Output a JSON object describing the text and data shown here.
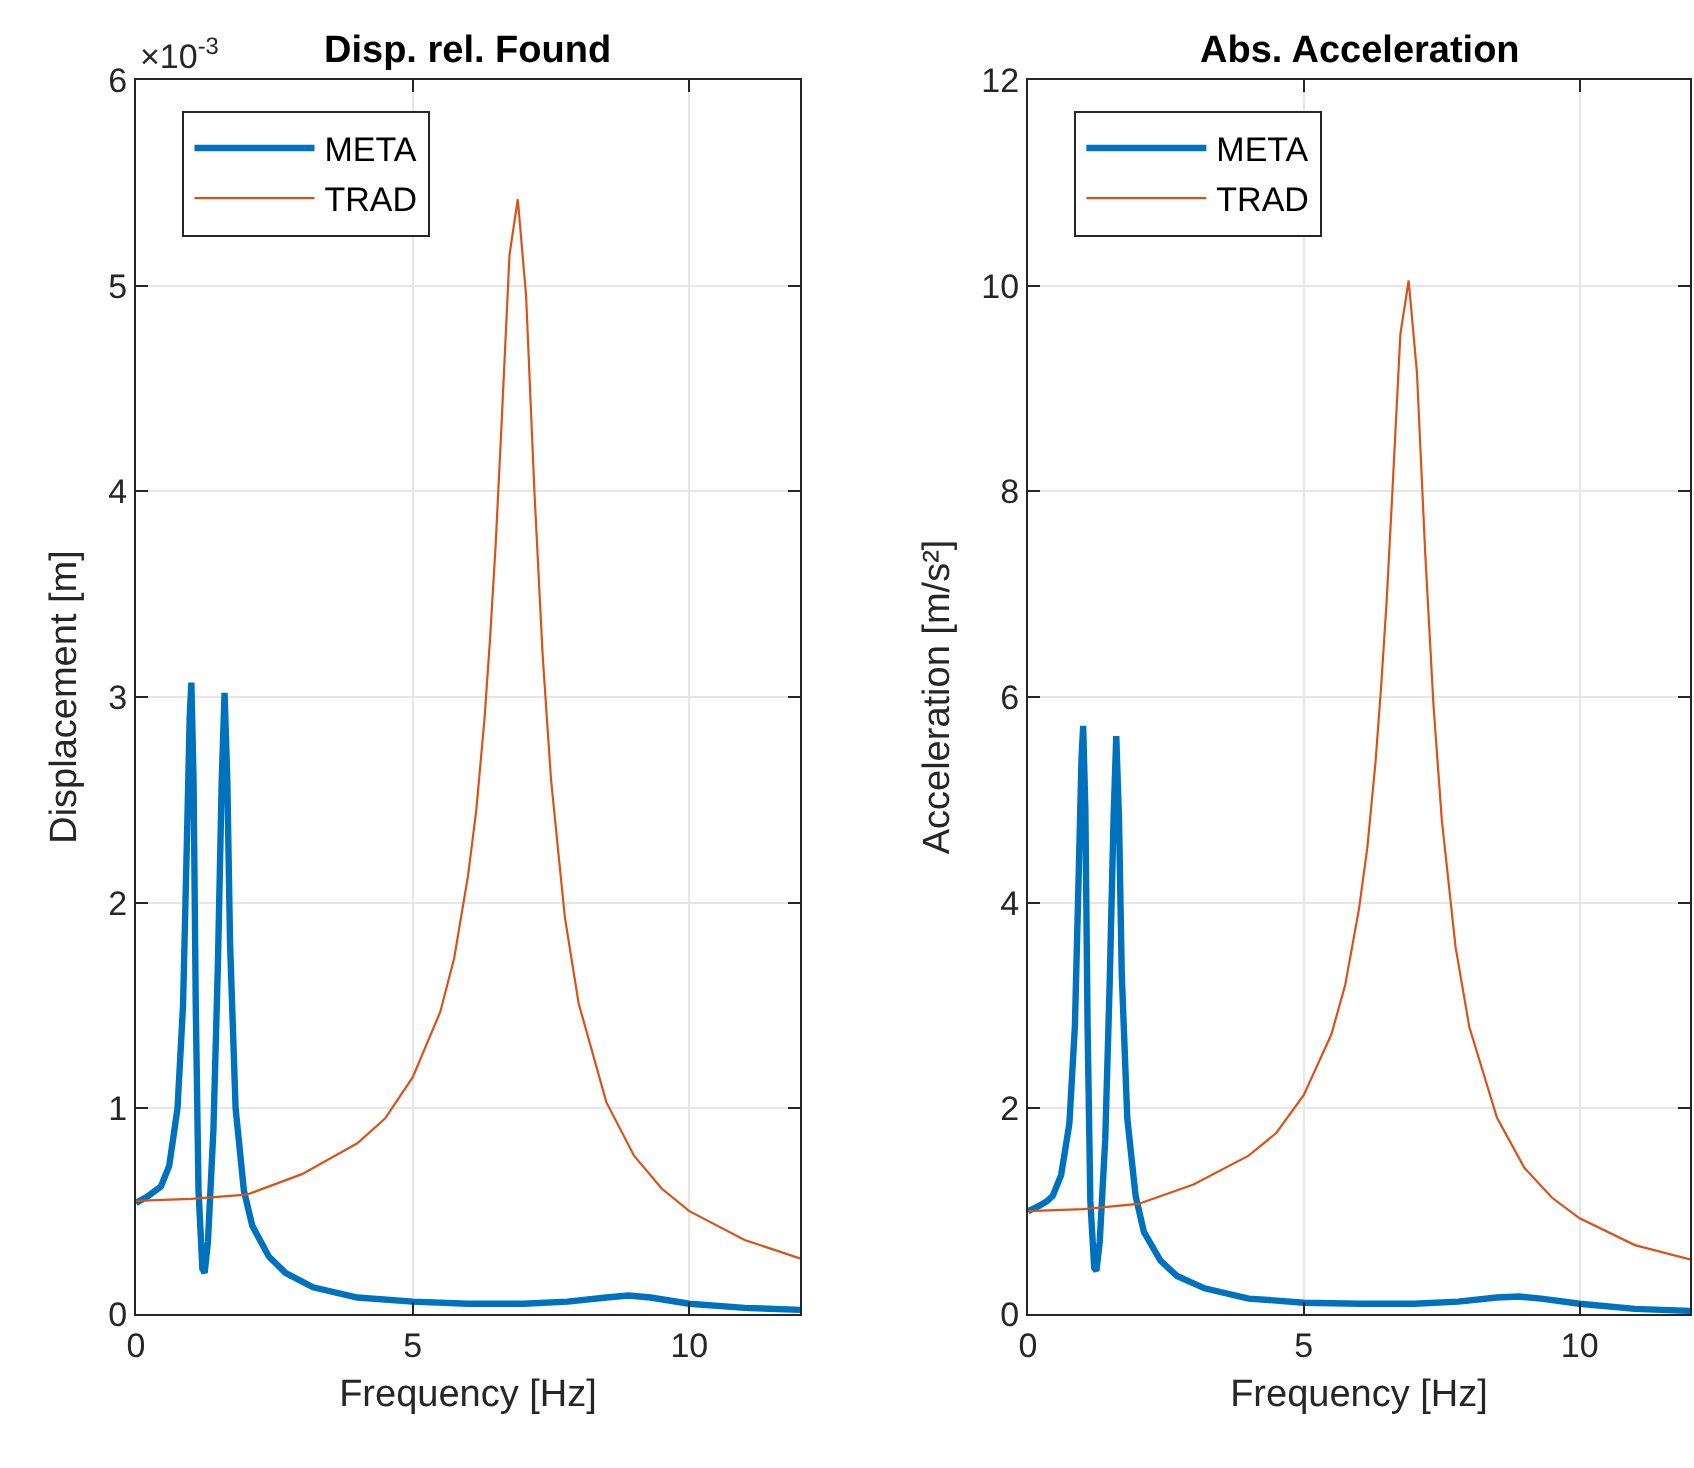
{
  "chart_data": [
    {
      "type": "line",
      "title": "Disp. rel. Found",
      "xlabel": "Frequency [Hz]",
      "ylabel": "Displacement [m]",
      "annotations": [
        "×10$^{-3}$"
      ],
      "xlim": [
        0,
        12
      ],
      "xticks": [
        0,
        5,
        10
      ],
      "ylim": [
        0,
        6
      ],
      "yticks": [
        0,
        1,
        2,
        3,
        4,
        5,
        6
      ],
      "grid": true,
      "legend": "top left",
      "series": [
        {
          "name": "META",
          "color": "#0072bd",
          "x": [
            0,
            0.2,
            0.35,
            0.45,
            0.6,
            0.75,
            0.85,
            0.92,
            0.97,
            1.0,
            1.04,
            1.08,
            1.13,
            1.2,
            1.24,
            1.3,
            1.4,
            1.48,
            1.55,
            1.6,
            1.65,
            1.7,
            1.8,
            1.95,
            2.1,
            2.4,
            2.7,
            3.2,
            4,
            5,
            6,
            7,
            7.8,
            8.5,
            8.9,
            9.3,
            10,
            11,
            12
          ],
          "values": [
            0.54,
            0.57,
            0.6,
            0.62,
            0.72,
            1.0,
            1.5,
            2.3,
            2.9,
            3.07,
            2.6,
            1.5,
            0.6,
            0.22,
            0.2,
            0.35,
            0.9,
            1.7,
            2.6,
            3.02,
            2.6,
            1.8,
            1.0,
            0.6,
            0.43,
            0.28,
            0.2,
            0.13,
            0.08,
            0.06,
            0.05,
            0.05,
            0.06,
            0.08,
            0.09,
            0.08,
            0.05,
            0.03,
            0.02
          ]
        },
        {
          "name": "TRAD",
          "color": "#d95319",
          "x": [
            0,
            1,
            2,
            3,
            4,
            4.5,
            5,
            5.5,
            5.75,
            6,
            6.15,
            6.3,
            6.4,
            6.5,
            6.6,
            6.75,
            6.9,
            7.05,
            7.2,
            7.35,
            7.5,
            7.75,
            8,
            8.5,
            9,
            9.5,
            10,
            11,
            12
          ],
          "values": [
            0.55,
            0.56,
            0.58,
            0.68,
            0.83,
            0.95,
            1.15,
            1.47,
            1.73,
            2.13,
            2.45,
            2.9,
            3.29,
            3.74,
            4.29,
            5.15,
            5.42,
            4.95,
            4.0,
            3.2,
            2.6,
            1.93,
            1.51,
            1.03,
            0.77,
            0.61,
            0.5,
            0.36,
            0.27
          ]
        }
      ]
    },
    {
      "type": "line",
      "title": "Abs. Acceleration",
      "xlabel": "Frequency [Hz]",
      "ylabel": "Acceleration [m/s²]",
      "xlim": [
        0,
        12
      ],
      "xticks": [
        0,
        5,
        10
      ],
      "ylim": [
        0,
        12
      ],
      "yticks": [
        0,
        2,
        4,
        6,
        8,
        10,
        12
      ],
      "grid": true,
      "legend": "top left",
      "series": [
        {
          "name": "META",
          "color": "#0072bd",
          "x": [
            0,
            0.2,
            0.35,
            0.45,
            0.6,
            0.75,
            0.85,
            0.92,
            0.97,
            1.0,
            1.04,
            1.08,
            1.13,
            1.2,
            1.24,
            1.3,
            1.4,
            1.48,
            1.55,
            1.6,
            1.65,
            1.7,
            1.8,
            1.95,
            2.1,
            2.4,
            2.7,
            3.2,
            4,
            5,
            6,
            7,
            7.8,
            8.5,
            8.9,
            9.3,
            10,
            11,
            12
          ],
          "values": [
            1.0,
            1.05,
            1.1,
            1.15,
            1.35,
            1.85,
            2.8,
            4.3,
            5.4,
            5.72,
            4.9,
            2.8,
            1.1,
            0.45,
            0.42,
            0.7,
            1.7,
            3.2,
            4.8,
            5.62,
            4.8,
            3.3,
            1.9,
            1.15,
            0.8,
            0.52,
            0.37,
            0.25,
            0.15,
            0.11,
            0.1,
            0.1,
            0.12,
            0.16,
            0.17,
            0.15,
            0.1,
            0.05,
            0.03
          ]
        },
        {
          "name": "TRAD",
          "color": "#d95319",
          "x": [
            0,
            1,
            2,
            3,
            4,
            4.5,
            5,
            5.5,
            5.75,
            6,
            6.15,
            6.3,
            6.4,
            6.5,
            6.6,
            6.75,
            6.9,
            7.05,
            7.2,
            7.35,
            7.5,
            7.75,
            8,
            8.5,
            9,
            9.5,
            10,
            11,
            12
          ],
          "values": [
            1.0,
            1.02,
            1.07,
            1.26,
            1.54,
            1.76,
            2.13,
            2.72,
            3.2,
            3.94,
            4.53,
            5.37,
            6.09,
            6.92,
            7.94,
            9.53,
            10.05,
            9.16,
            7.4,
            5.92,
            4.81,
            3.57,
            2.79,
            1.91,
            1.42,
            1.13,
            0.93,
            0.67,
            0.53
          ]
        }
      ]
    }
  ]
}
